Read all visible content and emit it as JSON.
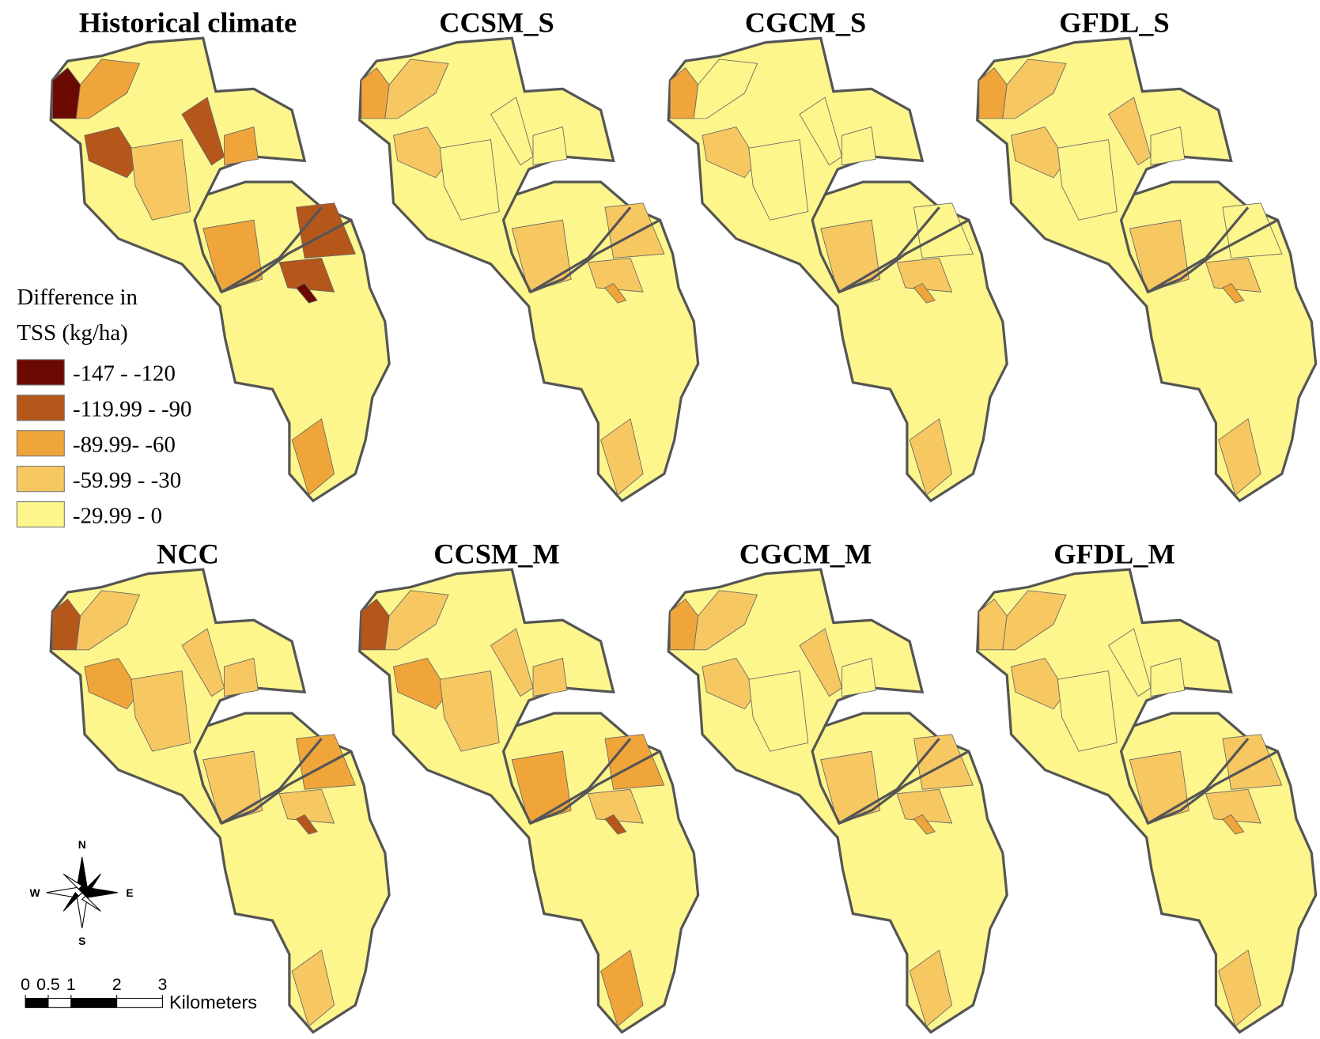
{
  "panels": [
    {
      "title": "Historical climate",
      "classes": [
        4,
        0,
        2,
        1,
        1,
        2,
        1,
        1,
        2,
        0,
        2,
        3
      ]
    },
    {
      "title": "CCSM_S",
      "classes": [
        4,
        2,
        3,
        3,
        4,
        4,
        3,
        3,
        3,
        2,
        3,
        4
      ]
    },
    {
      "title": "CGCM_S",
      "classes": [
        4,
        2,
        4,
        3,
        4,
        4,
        4,
        3,
        3,
        2,
        3,
        4
      ]
    },
    {
      "title": "GFDL_S",
      "classes": [
        4,
        2,
        3,
        3,
        3,
        4,
        4,
        3,
        3,
        2,
        3,
        4
      ]
    },
    {
      "title": "NCC",
      "classes": [
        4,
        1,
        3,
        2,
        3,
        3,
        2,
        3,
        3,
        1,
        3,
        3
      ]
    },
    {
      "title": "CCSM_M",
      "classes": [
        4,
        1,
        3,
        2,
        3,
        3,
        2,
        3,
        2,
        1,
        2,
        3
      ]
    },
    {
      "title": "CGCM_M",
      "classes": [
        4,
        2,
        3,
        3,
        3,
        4,
        3,
        3,
        3,
        2,
        3,
        4
      ]
    },
    {
      "title": "GFDL_M",
      "classes": [
        4,
        3,
        3,
        3,
        4,
        4,
        3,
        3,
        3,
        2,
        3,
        4
      ]
    }
  ],
  "legend": {
    "title_lines": [
      "Difference in",
      "TSS (kg/ha)"
    ],
    "classes": [
      {
        "label": "-147 - -120",
        "color": "#6b0a02"
      },
      {
        "label": "-119.99 - -90",
        "color": "#b5561a"
      },
      {
        "label": "-89.99- -60",
        "color": "#f0a53a"
      },
      {
        "label": "-59.99 - -30",
        "color": "#f7c762"
      },
      {
        "label": "-29.99 - 0",
        "color": "#fdf68c"
      }
    ]
  },
  "compass": {
    "n": "N",
    "s": "S",
    "e": "E",
    "w": "W"
  },
  "scale_bar": {
    "labels": [
      0,
      0.5,
      1,
      2,
      3
    ],
    "unit": "Kilometers"
  }
}
